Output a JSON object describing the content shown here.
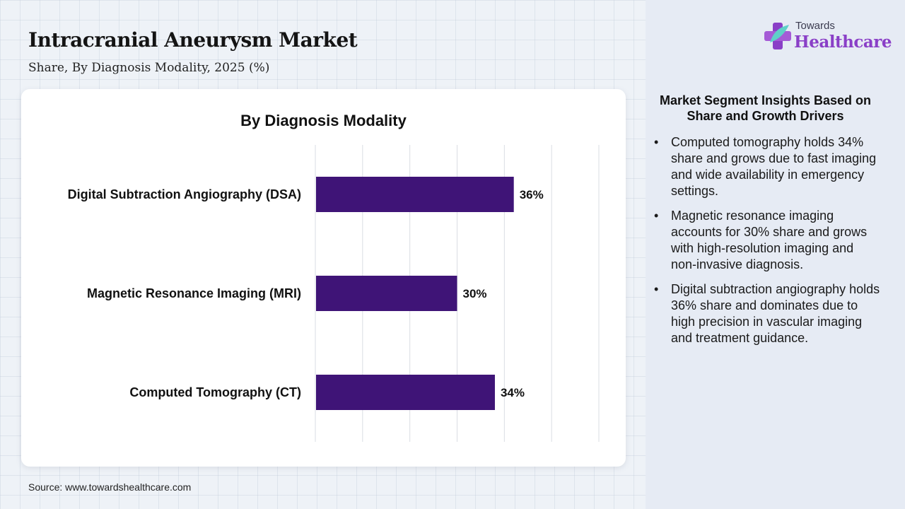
{
  "header": {
    "title": "Intracranial Aneurysm Market",
    "subtitle": "Share, By Diagnosis Modality, 2025 (%)"
  },
  "logo": {
    "top_text": "Towards",
    "main_text": "Healthcare",
    "icon": "medical-cross-icon"
  },
  "chart_data": {
    "type": "bar",
    "orientation": "horizontal",
    "title": "By Diagnosis Modality",
    "categories": [
      "Digital Subtraction Angiography (DSA)",
      "Magnetic Resonance Imaging (MRI)",
      "Computed Tomography (CT)"
    ],
    "values": [
      36,
      30,
      34
    ],
    "value_labels": [
      "36%",
      "30%",
      "34%"
    ],
    "xlim": [
      15,
      45
    ],
    "grid": true,
    "bar_color": "#3f1477"
  },
  "insights": {
    "title": "Market Segment Insights Based on Share and Growth Drivers",
    "items": [
      "Computed tomography holds 34% share and grows due to fast imaging and wide availability in emergency settings.",
      "Magnetic resonance imaging accounts for 30% share and grows with high-resolution imaging and non-invasive diagnosis.",
      "Digital subtraction angiography holds 36% share and dominates due to high precision in vascular imaging and treatment guidance."
    ]
  },
  "footer": {
    "source": "Source: www.towardshealthcare.com"
  },
  "colors": {
    "bar": "#3f1477",
    "brand": "#8a3fc7"
  }
}
